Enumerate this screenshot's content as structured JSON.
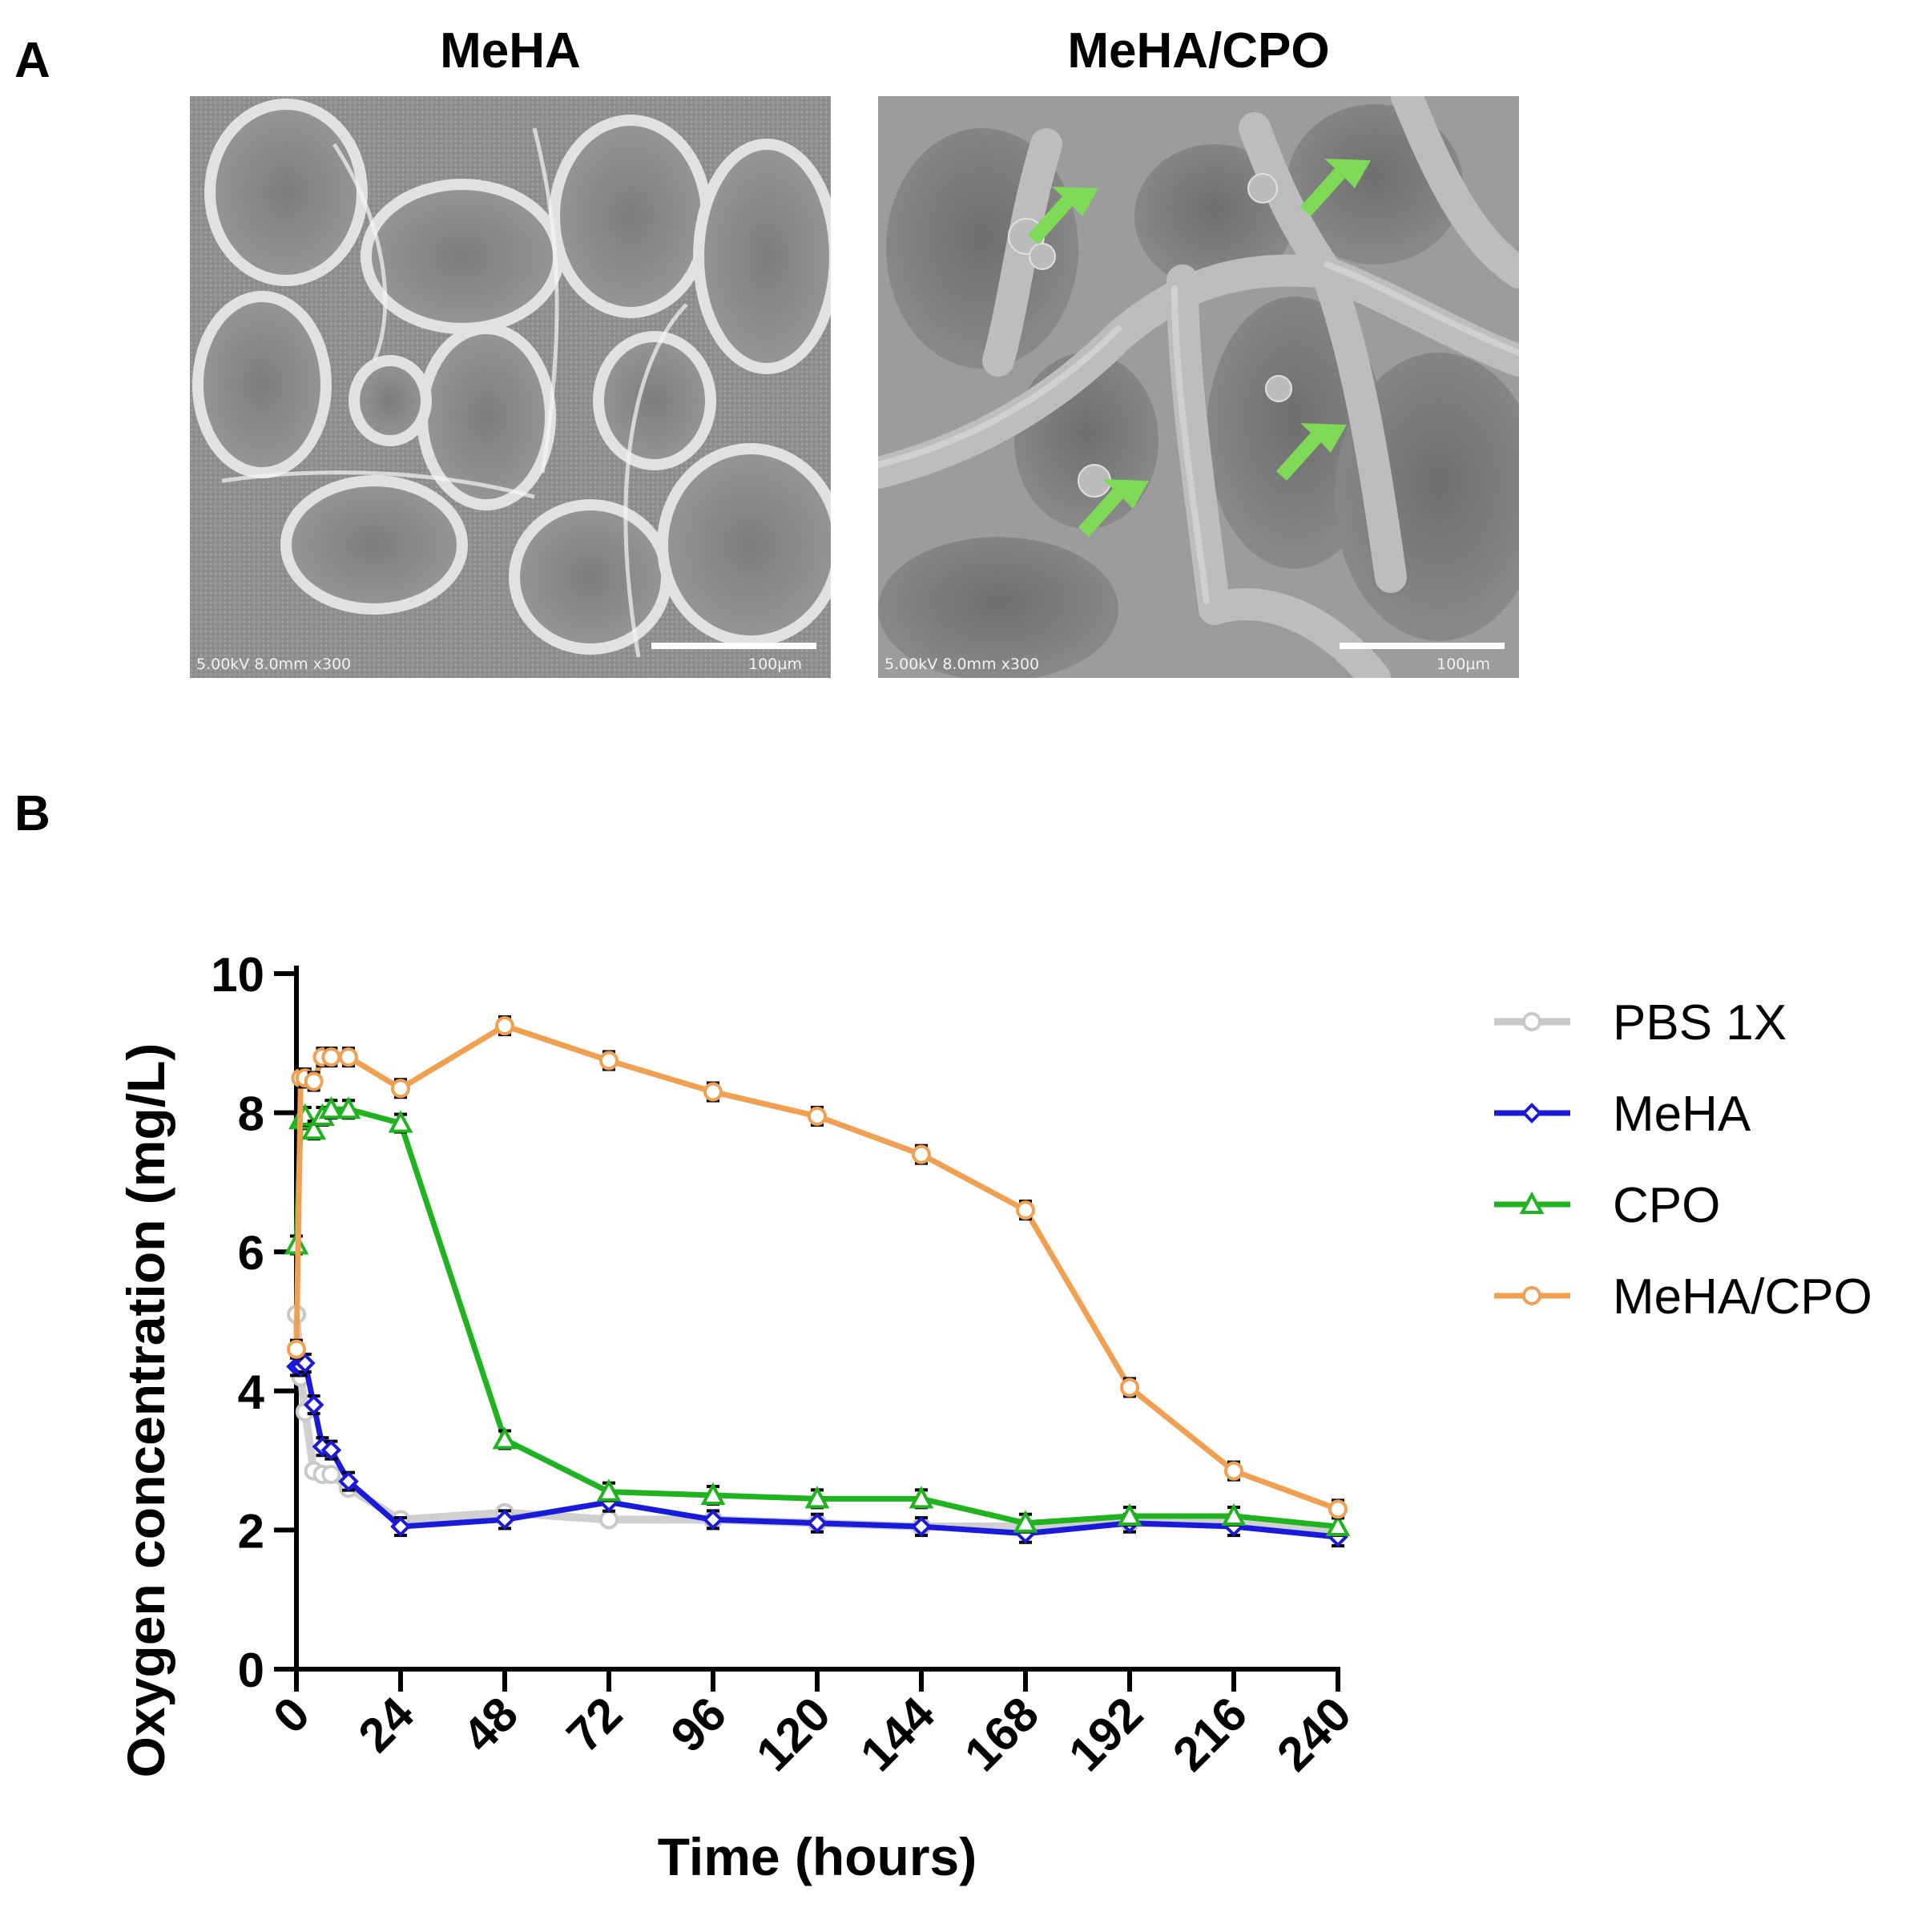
{
  "figure": {
    "panel_a_label": "A",
    "panel_b_label": "B"
  },
  "sem": {
    "left": {
      "title": "MeHA",
      "meta": "5.00kV 8.0mm x300",
      "scale": "100µm"
    },
    "right": {
      "title": "MeHA/CPO",
      "meta": "5.00kV 8.0mm x300",
      "scale": "100µm",
      "arrow_color": "#7ed957",
      "arrow_count": 4
    }
  },
  "chart_data": {
    "type": "line",
    "xlabel": "Time (hours)",
    "ylabel": "Oxygen concentration (mg/L)",
    "xlim": [
      0,
      240
    ],
    "ylim": [
      0,
      10
    ],
    "xticks": [
      0,
      24,
      48,
      72,
      96,
      120,
      144,
      168,
      192,
      216,
      240
    ],
    "yticks": [
      0,
      2,
      4,
      6,
      8,
      10
    ],
    "legend_position": "right",
    "error_bars": true,
    "series": [
      {
        "name": "PBS 1X",
        "color": "#c8c8c8",
        "marker": "circle",
        "x": [
          0,
          1,
          2,
          4,
          6,
          8,
          12,
          24,
          48,
          72,
          96,
          120,
          144,
          168,
          192,
          216,
          240
        ],
        "y": [
          5.1,
          4.2,
          3.7,
          2.85,
          2.8,
          2.8,
          2.6,
          2.15,
          2.25,
          2.15,
          2.15,
          2.1,
          2.05,
          2.05,
          2.1,
          2.1,
          1.95
        ]
      },
      {
        "name": "MeHA",
        "color": "#1a1adb",
        "marker": "diamond",
        "x": [
          0,
          1,
          2,
          4,
          6,
          8,
          12,
          24,
          48,
          72,
          96,
          120,
          144,
          168,
          192,
          216,
          240
        ],
        "y": [
          4.35,
          4.35,
          4.4,
          3.8,
          3.2,
          3.15,
          2.7,
          2.05,
          2.15,
          2.4,
          2.15,
          2.1,
          2.05,
          1.95,
          2.1,
          2.05,
          1.9
        ]
      },
      {
        "name": "CPO",
        "color": "#1fb31f",
        "marker": "triangle",
        "x": [
          0,
          1,
          2,
          4,
          6,
          8,
          12,
          24,
          48,
          72,
          96,
          120,
          144,
          168,
          192,
          216,
          240
        ],
        "y": [
          6.1,
          7.9,
          7.95,
          7.75,
          7.95,
          8.05,
          8.05,
          7.85,
          3.3,
          2.55,
          2.5,
          2.45,
          2.45,
          2.1,
          2.2,
          2.2,
          2.05
        ]
      },
      {
        "name": "MeHA/CPO",
        "color": "#f0a050",
        "marker": "circle",
        "x": [
          0,
          1,
          2,
          4,
          6,
          8,
          12,
          24,
          48,
          72,
          96,
          120,
          144,
          168,
          192,
          216,
          240
        ],
        "y": [
          4.6,
          8.5,
          8.5,
          8.45,
          8.8,
          8.8,
          8.8,
          8.35,
          9.25,
          8.75,
          8.3,
          7.95,
          7.4,
          6.6,
          4.05,
          2.85,
          2.3
        ]
      }
    ]
  }
}
